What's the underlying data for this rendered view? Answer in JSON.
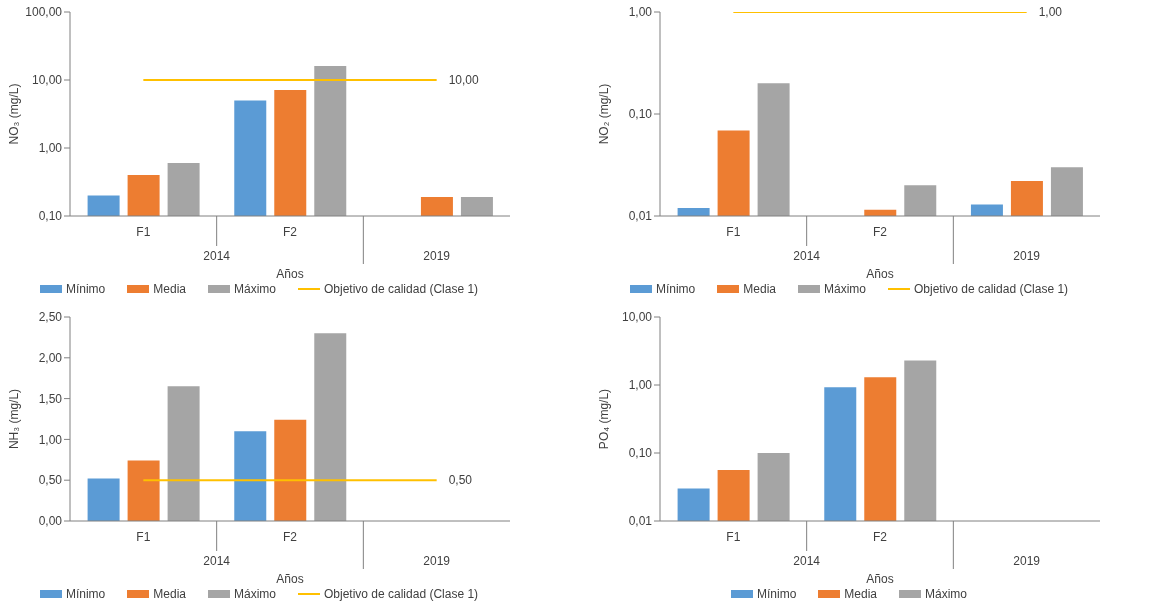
{
  "chart_data": [
    {
      "type": "bar",
      "ylabel": "NO₃ (mg/L)",
      "xlabel": "Años",
      "categories": [
        "F1",
        "F2",
        null
      ],
      "log": true,
      "ylim": [
        0.1,
        100
      ],
      "yticks": [
        {
          "value": 0.1,
          "label": "0,10"
        },
        {
          "value": 1,
          "label": "1,00"
        },
        {
          "value": 10,
          "label": "10,00"
        },
        {
          "value": 100,
          "label": "100,00"
        }
      ],
      "grid": false,
      "legend": "bottom",
      "annotations": [
        "2014",
        "2019"
      ],
      "series": [
        {
          "name": "Mínimo",
          "color": "#5b9bd5",
          "values": [
            0.2,
            5.0,
            null
          ]
        },
        {
          "name": "Media",
          "color": "#ed7d31",
          "values": [
            0.4,
            7.1,
            0.19
          ]
        },
        {
          "name": "Máximo",
          "color": "#a5a5a5",
          "values": [
            0.6,
            16,
            0.19
          ]
        },
        {
          "name": "Objetivo de calidad (Clase 1)",
          "type": "line",
          "color": "#ffc000",
          "marker": "none",
          "values": [
            10,
            10,
            10
          ],
          "value_labels": [
            null,
            null,
            "10,00"
          ]
        }
      ]
    },
    {
      "type": "bar",
      "ylabel": "NO₂ (mg/L)",
      "xlabel": "Años",
      "categories": [
        "F1",
        "F2",
        null
      ],
      "log": true,
      "ylim": [
        0.01,
        1
      ],
      "yticks": [
        {
          "value": 0.01,
          "label": "0,01"
        },
        {
          "value": 0.1,
          "label": "0,10"
        },
        {
          "value": 1,
          "label": "1,00"
        }
      ],
      "grid": false,
      "legend": "bottom",
      "annotations": [
        "2014",
        "2019"
      ],
      "series": [
        {
          "name": "Mínimo",
          "color": "#5b9bd5",
          "values": [
            0.012,
            null,
            0.013
          ]
        },
        {
          "name": "Media",
          "color": "#ed7d31",
          "values": [
            0.069,
            0.0115,
            0.022
          ]
        },
        {
          "name": "Máximo",
          "color": "#a5a5a5",
          "values": [
            0.2,
            0.02,
            0.03
          ]
        },
        {
          "name": "Objetivo de calidad (Clase 1)",
          "type": "line",
          "color": "#ffc000",
          "marker": "none",
          "values": [
            1,
            1,
            1
          ],
          "value_labels": [
            null,
            null,
            "1,00"
          ]
        }
      ]
    },
    {
      "type": "bar",
      "ylabel": "NH₃ (mg/L)",
      "xlabel": "Años",
      "categories": [
        "F1",
        "F2",
        null
      ],
      "ylim": [
        0,
        2.5
      ],
      "yticks": [
        {
          "value": 0,
          "label": "0,00"
        },
        {
          "value": 0.5,
          "label": "0,50"
        },
        {
          "value": 1,
          "label": "1,00"
        },
        {
          "value": 1.5,
          "label": "1,50"
        },
        {
          "value": 2,
          "label": "2,00"
        },
        {
          "value": 2.5,
          "label": "2,50"
        }
      ],
      "grid": false,
      "legend": "bottom",
      "annotations": [
        "2014",
        "2019"
      ],
      "series": [
        {
          "name": "Mínimo",
          "color": "#5b9bd5",
          "values": [
            0.52,
            1.1,
            null
          ]
        },
        {
          "name": "Media",
          "color": "#ed7d31",
          "values": [
            0.74,
            1.24,
            null
          ]
        },
        {
          "name": "Máximo",
          "color": "#a5a5a5",
          "values": [
            1.65,
            2.3,
            null
          ]
        },
        {
          "name": "Objetivo de calidad (Clase 1)",
          "type": "line",
          "color": "#ffc000",
          "marker": "none",
          "values": [
            0.5,
            0.5,
            0.5
          ],
          "value_labels": [
            null,
            null,
            "0,50"
          ]
        }
      ]
    },
    {
      "type": "bar",
      "ylabel": "PO₄ (mg/L)",
      "xlabel": "Años",
      "categories": [
        "F1",
        "F2",
        null
      ],
      "log": true,
      "ylim": [
        0.01,
        10
      ],
      "yticks": [
        {
          "value": 0.01,
          "label": "0,01"
        },
        {
          "value": 0.1,
          "label": "0,10"
        },
        {
          "value": 1,
          "label": "1,00"
        },
        {
          "value": 10,
          "label": "10,00"
        }
      ],
      "grid": false,
      "legend": "bottom",
      "annotations": [
        "2014",
        "2019"
      ],
      "series": [
        {
          "name": "Mínimo",
          "color": "#5b9bd5",
          "values": [
            0.03,
            0.93,
            null
          ]
        },
        {
          "name": "Media",
          "color": "#ed7d31",
          "values": [
            0.056,
            1.3,
            null
          ]
        },
        {
          "name": "Máximo",
          "color": "#a5a5a5",
          "values": [
            0.1,
            2.3,
            null
          ]
        }
      ]
    }
  ]
}
